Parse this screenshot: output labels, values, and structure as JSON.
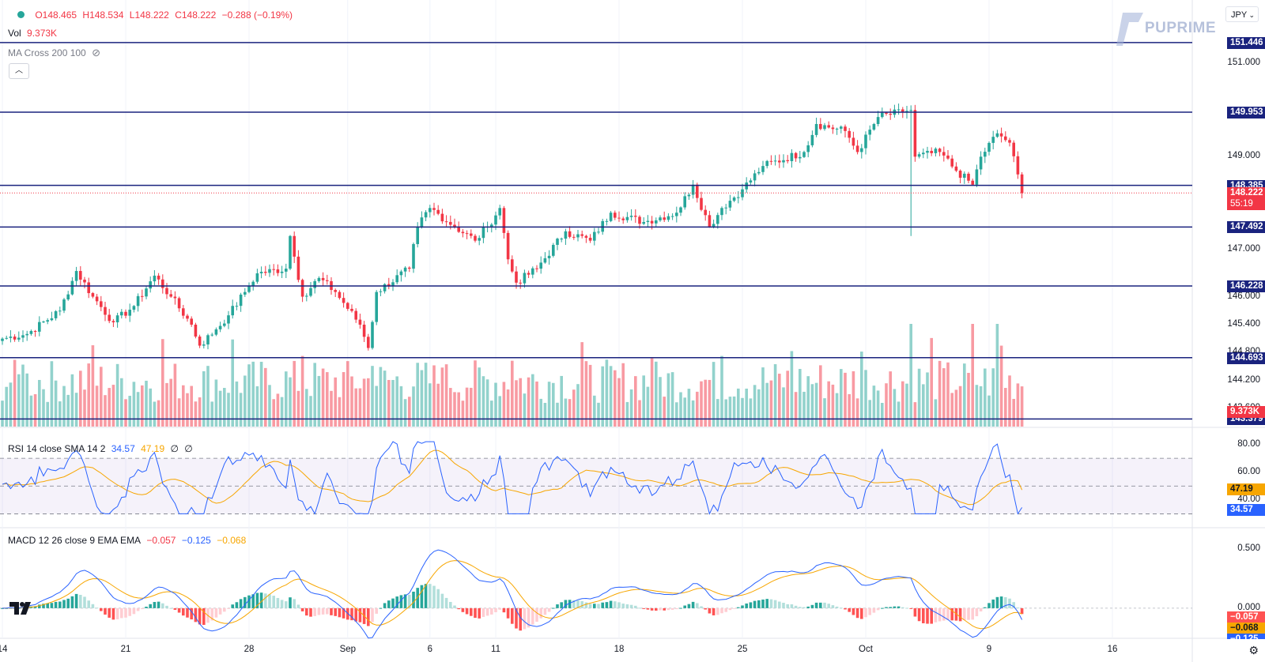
{
  "ohlc": {
    "open": "O148.465",
    "high": "H148.534",
    "low": "L148.222",
    "close": "C148.222",
    "change": "−0.288 (−0.19%)"
  },
  "vol_legend": {
    "label": "Vol",
    "value": "9.373K"
  },
  "ma_legend": {
    "label": "MA Cross 200 100"
  },
  "rsi_legend": {
    "label": "RSI 14 close SMA 14 2",
    "rsi": "34.57",
    "sma": "47.19",
    "v3": "∅",
    "v4": "∅"
  },
  "macd_legend": {
    "label": "MACD 12 26 close 9 EMA EMA",
    "hist": "−0.057",
    "macd": "−0.125",
    "signal": "−0.068"
  },
  "currency": "JPY",
  "brand": "PUPRIME",
  "colors": {
    "up": "#26a69a",
    "down": "#f23645",
    "level": "#1a237e",
    "rsi": "#2962ff",
    "sma": "#f7a600"
  },
  "price_levels": [
    {
      "value": 151.446,
      "text": "151.446"
    },
    {
      "value": 149.953,
      "text": "149.953"
    },
    {
      "value": 148.385,
      "text": "148.385"
    },
    {
      "value": 147.492,
      "text": "147.492"
    },
    {
      "value": 146.228,
      "text": "146.228"
    },
    {
      "value": 144.693,
      "text": "144.693"
    },
    {
      "value": 143.379,
      "text": "143.379"
    }
  ],
  "current_price": {
    "text": "148.222",
    "countdown": "55:19"
  },
  "volume_label": "9.373K",
  "price_ticks": [
    "151.000",
    "149.000",
    "147.000",
    "146.000",
    "145.400",
    "144.800",
    "144.200",
    "143.600"
  ],
  "rsi_ticks": [
    "80.00",
    "60.00",
    "40.00"
  ],
  "rsi_labels": {
    "sma": "47.19",
    "rsi": "34.57"
  },
  "macd_ticks": [
    "0.500",
    "0.000"
  ],
  "macd_labels": {
    "hist": "−0.057",
    "signal": "−0.068",
    "macd": "−0.125"
  },
  "time_ticks": [
    "14",
    "21",
    "28",
    "Sep",
    "6",
    "11",
    "18",
    "25",
    "Oct",
    "9",
    "16"
  ],
  "chart_data": {
    "type": "candlestick",
    "title": "",
    "anchors": [
      {
        "t": 0,
        "p": 145.1
      },
      {
        "t": 6,
        "p": 145.2
      },
      {
        "t": 14,
        "p": 145.7
      },
      {
        "t": 18,
        "p": 146.55
      },
      {
        "t": 22,
        "p": 146.0
      },
      {
        "t": 27,
        "p": 145.45
      },
      {
        "t": 32,
        "p": 145.8
      },
      {
        "t": 37,
        "p": 146.45
      },
      {
        "t": 41,
        "p": 146.0
      },
      {
        "t": 46,
        "p": 145.4
      },
      {
        "t": 48,
        "p": 144.95
      },
      {
        "t": 52,
        "p": 145.3
      },
      {
        "t": 55,
        "p": 145.6
      },
      {
        "t": 59,
        "p": 146.1
      },
      {
        "t": 62,
        "p": 146.5
      },
      {
        "t": 69,
        "p": 146.6
      },
      {
        "t": 70,
        "p": 147.3
      },
      {
        "t": 73,
        "p": 146.0
      },
      {
        "t": 77,
        "p": 146.4
      },
      {
        "t": 81,
        "p": 146.1
      },
      {
        "t": 87,
        "p": 145.4
      },
      {
        "t": 89,
        "p": 144.9
      },
      {
        "t": 91,
        "p": 146.1
      },
      {
        "t": 99,
        "p": 146.6
      },
      {
        "t": 101,
        "p": 147.5
      },
      {
        "t": 104,
        "p": 147.9
      },
      {
        "t": 110,
        "p": 147.5
      },
      {
        "t": 115,
        "p": 147.2
      },
      {
        "t": 118,
        "p": 147.5
      },
      {
        "t": 121,
        "p": 147.9
      },
      {
        "t": 123,
        "p": 146.8
      },
      {
        "t": 125,
        "p": 146.3
      },
      {
        "t": 130,
        "p": 146.6
      },
      {
        "t": 137,
        "p": 147.4
      },
      {
        "t": 143,
        "p": 147.2
      },
      {
        "t": 148,
        "p": 147.8
      },
      {
        "t": 156,
        "p": 147.6
      },
      {
        "t": 164,
        "p": 147.8
      },
      {
        "t": 168,
        "p": 148.4
      },
      {
        "t": 172,
        "p": 147.5
      },
      {
        "t": 175,
        "p": 147.9
      },
      {
        "t": 180,
        "p": 148.3
      },
      {
        "t": 185,
        "p": 148.8
      },
      {
        "t": 195,
        "p": 149.1
      },
      {
        "t": 198,
        "p": 149.7
      },
      {
        "t": 205,
        "p": 149.55
      },
      {
        "t": 208,
        "p": 149.1
      },
      {
        "t": 213,
        "p": 149.85
      },
      {
        "t": 221,
        "p": 150.0
      },
      {
        "t": 222,
        "p": 149.0
      },
      {
        "t": 228,
        "p": 149.1
      },
      {
        "t": 232,
        "p": 148.7
      },
      {
        "t": 236,
        "p": 148.4
      },
      {
        "t": 238,
        "p": 149.0
      },
      {
        "t": 242,
        "p": 149.5
      },
      {
        "t": 245,
        "p": 149.3
      },
      {
        "t": 248,
        "p": 148.22
      }
    ],
    "price_range": [
      143.3,
      151.85
    ],
    "rsi_range": [
      20,
      90
    ],
    "rsi_reference_levels": [
      70,
      50,
      30
    ],
    "macd_range": [
      -0.2,
      0.65
    ]
  }
}
